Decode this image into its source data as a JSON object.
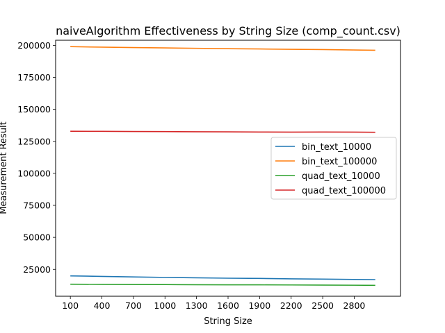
{
  "chart_data": {
    "type": "line",
    "title": "naiveAlgorithm Effectiveness by String Size (comp_count.csv)",
    "xlabel": "String Size",
    "ylabel": "Measurement Result",
    "xlim": [
      -40,
      3240
    ],
    "ylim": [
      4000,
      204000
    ],
    "xticks": [
      100,
      400,
      700,
      1000,
      1300,
      1600,
      1900,
      2200,
      2500,
      2800
    ],
    "yticks": [
      25000,
      50000,
      75000,
      100000,
      125000,
      150000,
      175000,
      200000
    ],
    "x": [
      100,
      400,
      700,
      1000,
      1300,
      1600,
      1900,
      2200,
      2500,
      2800,
      3000
    ],
    "legend_position": "center-right",
    "grid": false,
    "series": [
      {
        "name": "bin_text_10000",
        "color": "#1f77b4",
        "values": [
          19900,
          19500,
          19100,
          18700,
          18400,
          18100,
          17900,
          17600,
          17400,
          17100,
          16900
        ]
      },
      {
        "name": "bin_text_100000",
        "color": "#ff7f0e",
        "values": [
          199000,
          198600,
          198300,
          198000,
          197700,
          197400,
          197200,
          196900,
          196700,
          196400,
          196200
        ]
      },
      {
        "name": "quad_text_10000",
        "color": "#2ca02c",
        "values": [
          13400,
          13300,
          13200,
          13100,
          13000,
          12900,
          12900,
          12800,
          12700,
          12600,
          12500
        ]
      },
      {
        "name": "quad_text_100000",
        "color": "#d62728",
        "values": [
          132900,
          132800,
          132700,
          132600,
          132500,
          132400,
          132300,
          132200,
          132300,
          132200,
          132100
        ]
      }
    ]
  }
}
